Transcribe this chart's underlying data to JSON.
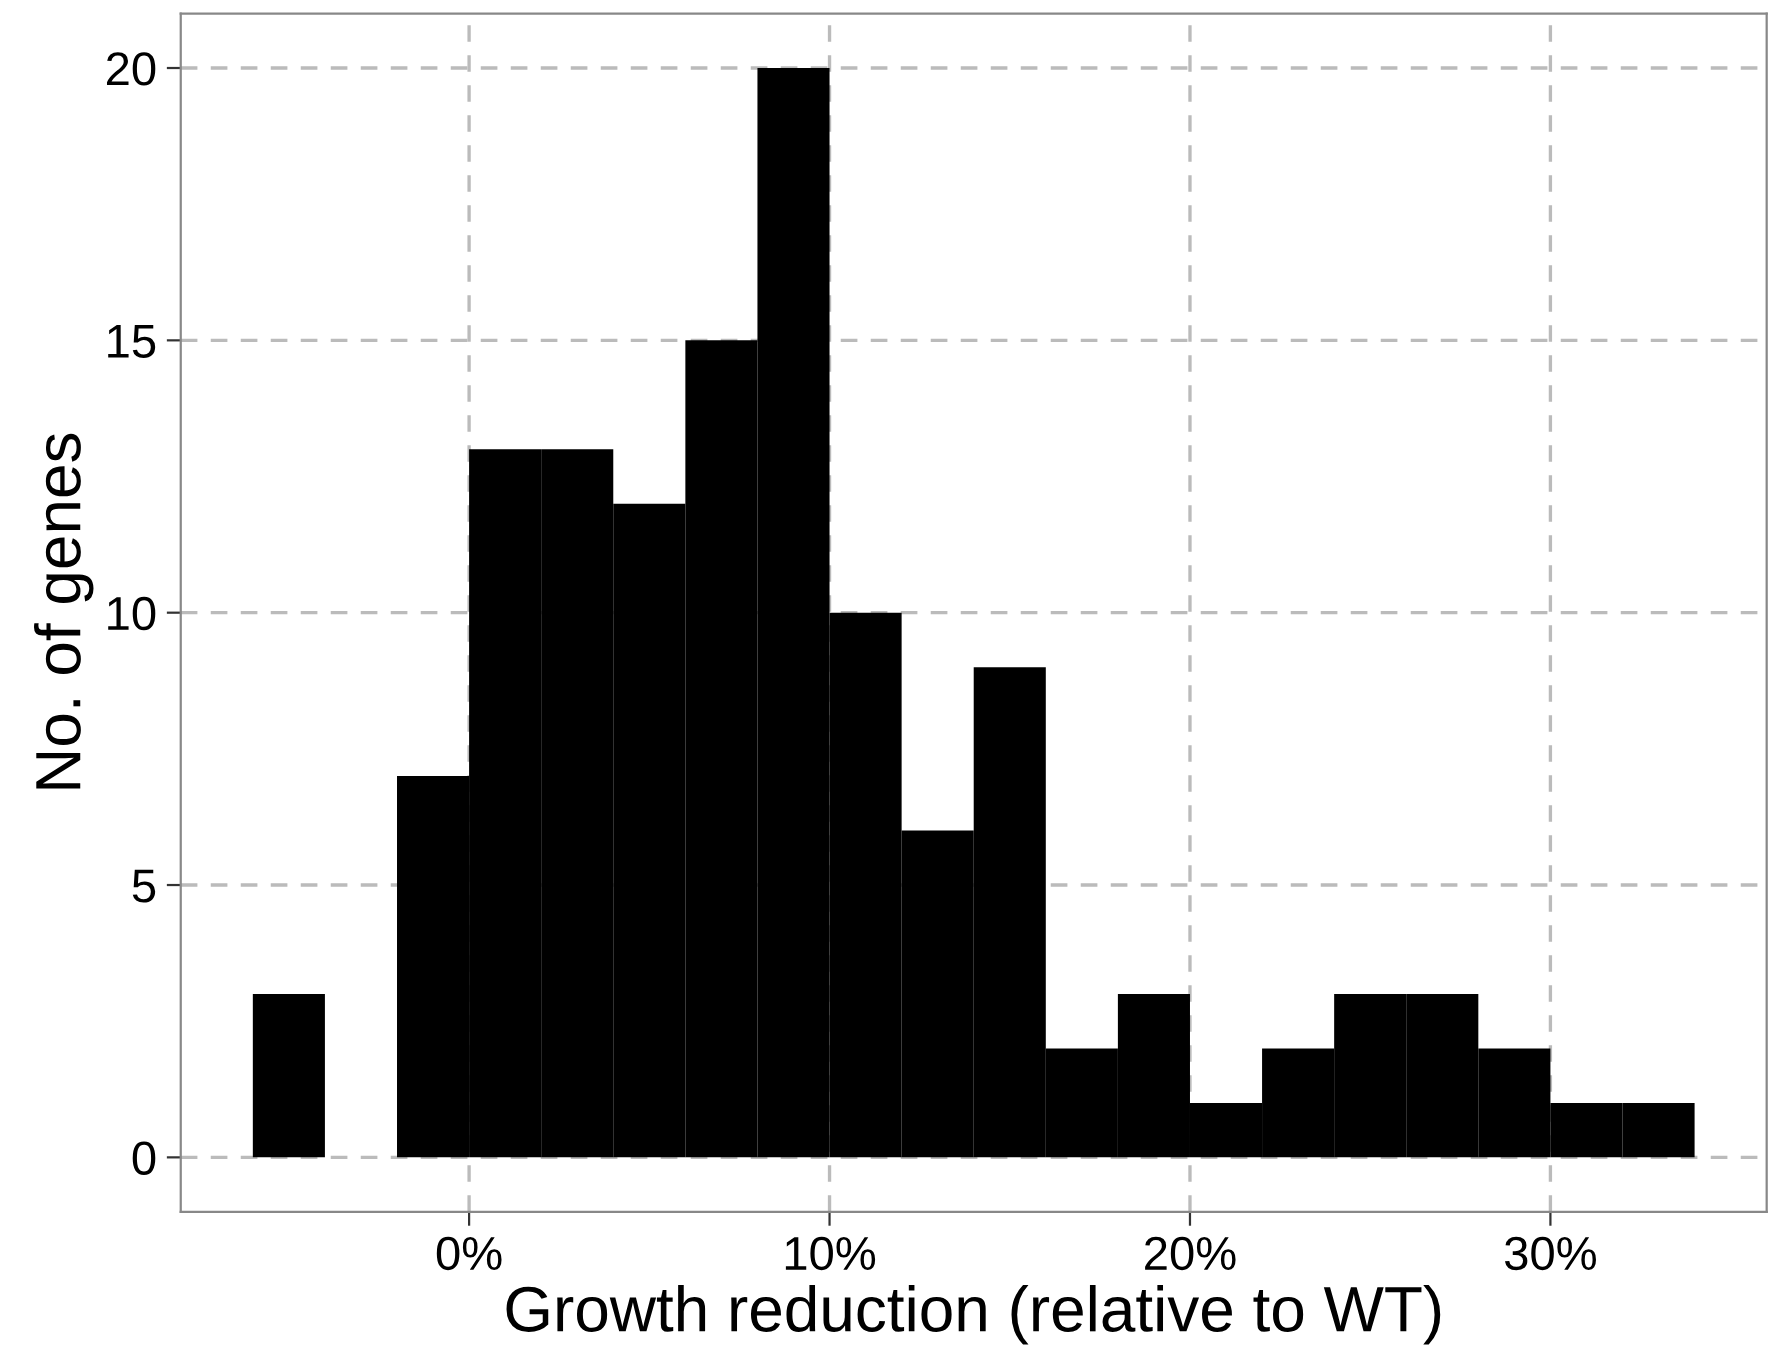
{
  "chart_data": {
    "type": "histogram",
    "xlabel": "Growth reduction (relative to WT)",
    "ylabel": "No. of genes",
    "bins": [
      -6,
      -4,
      -2,
      0,
      2,
      4,
      6,
      8,
      10,
      12,
      14,
      16,
      18,
      20,
      22,
      24,
      26,
      28,
      30,
      32,
      34
    ],
    "values": [
      3,
      0,
      7,
      13,
      13,
      12,
      15,
      20,
      10,
      6,
      9,
      2,
      3,
      1,
      2,
      3,
      3,
      2,
      1,
      1
    ],
    "color": "#000000",
    "xlim": [
      -8,
      36
    ],
    "ylim": [
      -1,
      21
    ],
    "xticks": [
      {
        "value": 0,
        "label": "0%"
      },
      {
        "value": 10,
        "label": "10%"
      },
      {
        "value": 20,
        "label": "20%"
      },
      {
        "value": 30,
        "label": "30%"
      }
    ],
    "yticks": [
      0,
      5,
      10,
      15,
      20
    ],
    "grid": true,
    "line_style": "dashed"
  }
}
